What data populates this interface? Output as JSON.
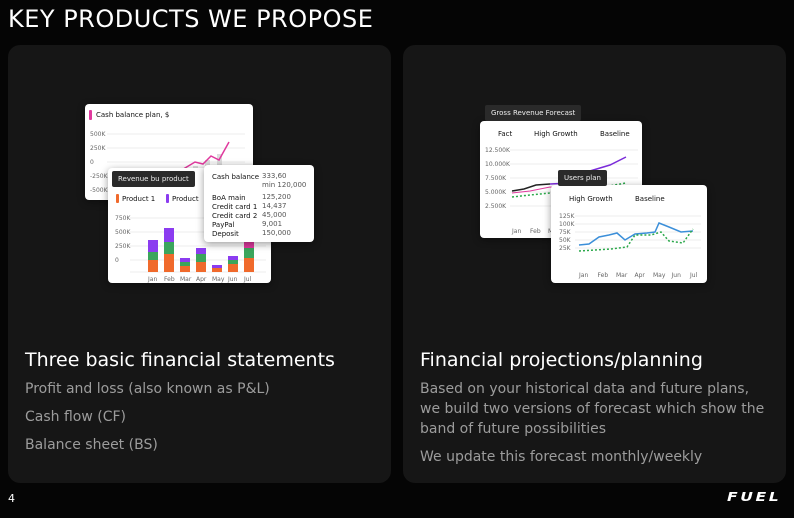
{
  "header": {
    "title": "KEY PRODUCTS WE PROPOSE"
  },
  "cards": [
    {
      "heading": "Three basic financial statements",
      "lines": [
        "Profit and loss (also known as P&L)",
        "Cash flow (CF)",
        "Balance sheet (BS)"
      ],
      "illustration": {
        "cash_chart": {
          "title": "Cash  balance plan, $",
          "yticks": [
            "500K",
            "250K",
            "0",
            "-250K",
            "-500K"
          ]
        },
        "revenue_chart": {
          "tag": "Revenue bu product",
          "legend": [
            "Product 1",
            "Product"
          ],
          "yticks": [
            "750K",
            "500K",
            "250K",
            "0"
          ],
          "months": [
            "Jan",
            "Feb",
            "Mar",
            "Apr",
            "May",
            "Jun",
            "Jul"
          ]
        },
        "tooltip": {
          "rows": [
            {
              "label": "Cash balance",
              "value": "333,60",
              "note": "min 120,000"
            },
            {
              "label": "BoA main",
              "value": "125,200"
            },
            {
              "label": "Credit card 1",
              "value": "14,437"
            },
            {
              "label": "Credit card 2",
              "value": "45,000"
            },
            {
              "label": "PayPal",
              "value": "9,001"
            },
            {
              "label": "Deposit",
              "value": "150,000"
            }
          ]
        }
      }
    },
    {
      "heading": "Financial projections/planning",
      "lines": [
        "Based on your historical data and future plans, we build two versions of forecast which show the band of future possibilities",
        "We update this forecast monthly/weekly"
      ],
      "illustration": {
        "revenue_chart": {
          "tag": "Gross Revenue Forecast",
          "columns": [
            "Fact",
            "High Growth",
            "Baseline"
          ],
          "yticks": [
            "12.500K",
            "10.000K",
            "7.500K",
            "5.000K",
            "2.500K"
          ],
          "months": [
            "Jan",
            "Feb",
            "M"
          ]
        },
        "users_chart": {
          "tag": "Users plan",
          "columns": [
            "High Growth",
            "Baseline"
          ],
          "yticks": [
            "125K",
            "100K",
            "75K",
            "50K",
            "25K"
          ],
          "months": [
            "Jan",
            "Feb",
            "Mar",
            "Apr",
            "May",
            "Jun",
            "Jul"
          ]
        }
      }
    }
  ],
  "footer": {
    "page": "4",
    "logo": "FUEL"
  }
}
